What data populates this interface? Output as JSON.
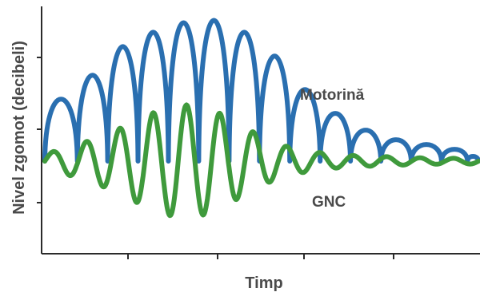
{
  "chart_data": {
    "type": "line",
    "title": "",
    "xlabel": "Timp",
    "ylabel": "Nivel zgomot (decibeli)",
    "x_ticks_labeled": false,
    "y_ticks_labeled": false,
    "grid": false,
    "series": [
      {
        "name": "Motorină",
        "color": "#2a6fb0",
        "description_free": true,
        "peaks": [
          {
            "t": 0.04,
            "h": 0.62
          },
          {
            "t": 0.11,
            "h": 0.72
          },
          {
            "t": 0.18,
            "h": 0.84
          },
          {
            "t": 0.25,
            "h": 0.9
          },
          {
            "t": 0.32,
            "h": 0.94
          },
          {
            "t": 0.39,
            "h": 0.95
          },
          {
            "t": 0.46,
            "h": 0.9
          },
          {
            "t": 0.53,
            "h": 0.8
          },
          {
            "t": 0.6,
            "h": 0.66
          },
          {
            "t": 0.67,
            "h": 0.56
          },
          {
            "t": 0.74,
            "h": 0.49
          },
          {
            "t": 0.81,
            "h": 0.45
          },
          {
            "t": 0.88,
            "h": 0.43
          },
          {
            "t": 0.95,
            "h": 0.41
          },
          {
            "t": 1.0,
            "h": 0.38
          }
        ],
        "trough": 0.36
      },
      {
        "name": "GNC",
        "color": "#3f9a3c",
        "amplitudes": [
          0.03,
          0.07,
          0.12,
          0.19,
          0.24,
          0.22,
          0.14,
          0.07,
          0.04,
          0.025,
          0.02,
          0.015,
          0.012
        ],
        "baseline": 0.36
      }
    ],
    "annotations": [
      "Motorină",
      "GNC"
    ]
  },
  "colors": {
    "axis": "#2b2b2b",
    "label": "#4a4a4a"
  }
}
